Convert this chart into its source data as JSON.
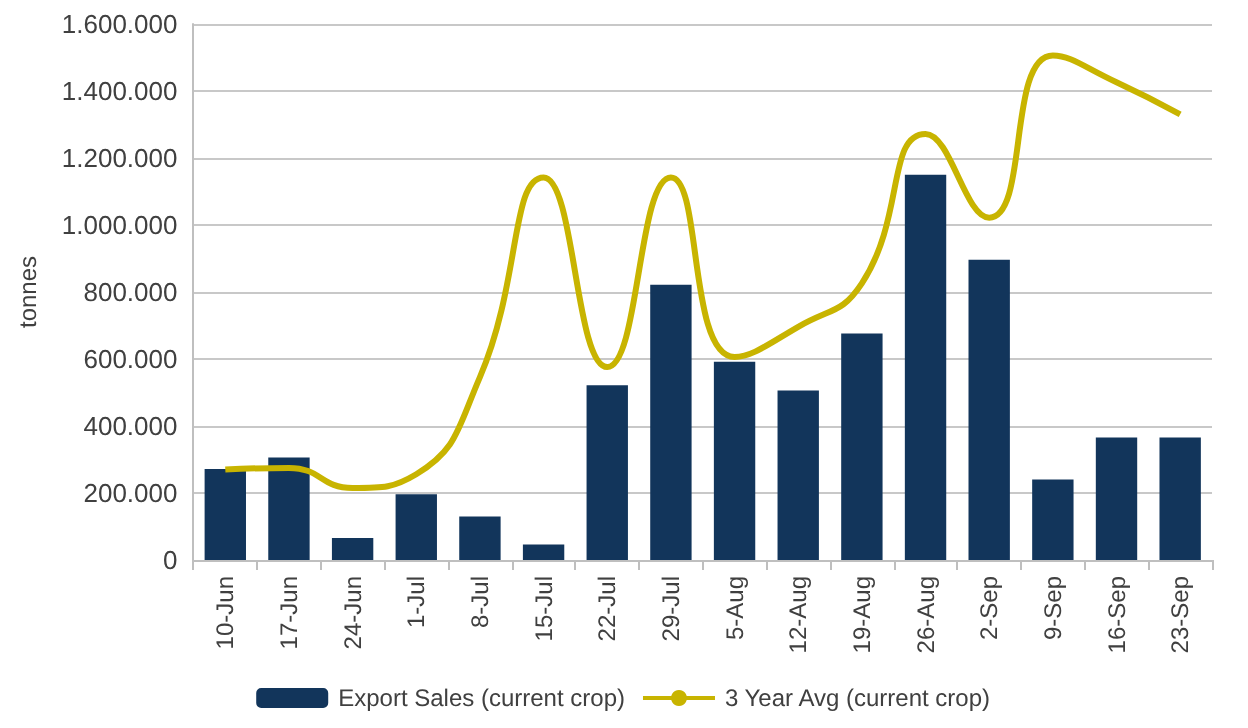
{
  "chart_data": {
    "type": "bar",
    "ylabel": "tonnes",
    "categories": [
      "10-Jun",
      "17-Jun",
      "24-Jun",
      "1-Jul",
      "8-Jul",
      "15-Jul",
      "22-Jul",
      "29-Jul",
      "5-Aug",
      "12-Aug",
      "19-Aug",
      "26-Aug",
      "2-Sep",
      "9-Sep",
      "16-Sep",
      "23-Sep"
    ],
    "series": [
      {
        "name": "Export Sales (current crop)",
        "color": "#12355b",
        "values": [
          272000,
          306000,
          66000,
          196000,
          130000,
          46000,
          522000,
          822000,
          592000,
          506000,
          676000,
          1150000,
          896000,
          240000,
          366000,
          366000
        ]
      },
      {
        "name": "3 Year Avg (current crop)",
        "type": "line",
        "color": "#c8b400",
        "values": [
          270000,
          275000,
          215000,
          256000,
          546000,
          1142000,
          576000,
          1142000,
          606000,
          696000,
          826000,
          1272000,
          1022000,
          1506000,
          1426000,
          1330000
        ]
      }
    ],
    "ylim": [
      0,
      1600000
    ],
    "yticks": [
      {
        "value": 0,
        "label": "0"
      },
      {
        "value": 200000,
        "label": "200.000"
      },
      {
        "value": 400000,
        "label": "400.000"
      },
      {
        "value": 600000,
        "label": "600.000"
      },
      {
        "value": 800000,
        "label": "800.000"
      },
      {
        "value": 1000000,
        "label": "1.000.000"
      },
      {
        "value": 1200000,
        "label": "1.200.000"
      },
      {
        "value": 1400000,
        "label": "1.400.000"
      },
      {
        "value": 1600000,
        "label": "1.600.000"
      }
    ],
    "grid": "y",
    "legend": "bottom",
    "marker": "none"
  }
}
